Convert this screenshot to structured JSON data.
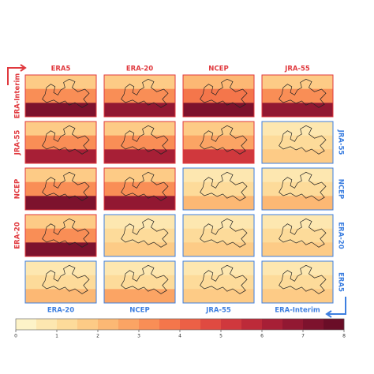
{
  "chart_data": {
    "type": "map-grid",
    "top_labels": [
      "ERA5",
      "ERA-20",
      "NCEP",
      "JRA-55"
    ],
    "left_labels": [
      "ERA-Interim",
      "JRA-55",
      "NCEP",
      "ERA-20"
    ],
    "right_labels": [
      "JRA-55",
      "NCEP",
      "ERA-20",
      "ERA5"
    ],
    "bottom_labels": [
      "ERA-20",
      "NCEP",
      "JRA-55",
      "ERA-Interim"
    ],
    "upper_color": "#e0393e",
    "lower_color": "#3d7fe0",
    "panels": [
      [
        {
          "values": [
            1.5,
            3,
            7
          ],
          "color": "#e0393e"
        },
        {
          "values": [
            1.5,
            3,
            6.5
          ],
          "color": "#e0393e"
        },
        {
          "values": [
            2,
            3.5,
            7
          ],
          "color": "#e0393e"
        },
        {
          "values": [
            1.5,
            3,
            6.5
          ],
          "color": "#e0393e"
        }
      ],
      [
        {
          "values": [
            1.5,
            3,
            6
          ],
          "color": "#e0393e"
        },
        {
          "values": [
            1.5,
            3,
            6
          ],
          "color": "#e0393e"
        },
        {
          "values": [
            1.5,
            2.5,
            5
          ],
          "color": "#e0393e"
        },
        {
          "values": [
            0.5,
            1,
            1.5
          ],
          "color": "#3d7fe0"
        }
      ],
      [
        {
          "values": [
            1.5,
            3,
            7
          ],
          "color": "#e0393e"
        },
        {
          "values": [
            1.5,
            3,
            6.5
          ],
          "color": "#e0393e"
        },
        {
          "values": [
            0.5,
            1,
            2
          ],
          "color": "#3d7fe0"
        },
        {
          "values": [
            0.5,
            1,
            2
          ],
          "color": "#3d7fe0"
        }
      ],
      [
        {
          "values": [
            1.5,
            3,
            7
          ],
          "color": "#e0393e"
        },
        {
          "values": [
            0.5,
            1,
            1.5
          ],
          "color": "#3d7fe0"
        },
        {
          "values": [
            0.5,
            1,
            1.5
          ],
          "color": "#3d7fe0"
        },
        {
          "values": [
            0.5,
            1,
            1.5
          ],
          "color": "#3d7fe0"
        }
      ],
      [
        {
          "values": [
            0.5,
            1,
            2
          ],
          "color": "#3d7fe0"
        },
        {
          "values": [
            0.5,
            1,
            2.5
          ],
          "color": "#3d7fe0"
        },
        {
          "values": [
            0.5,
            1,
            1.5
          ],
          "color": "#3d7fe0"
        },
        {
          "values": [
            0.5,
            1,
            1.5
          ],
          "color": "#3d7fe0"
        }
      ]
    ],
    "colorbar": {
      "lim": [
        0,
        8
      ],
      "ticks": [
        0,
        1,
        2,
        3,
        4,
        5,
        6,
        7,
        8
      ],
      "colors": [
        "#fdf3c8",
        "#fde7b0",
        "#fddb9a",
        "#fdcb86",
        "#fcb874",
        "#fba464",
        "#f98e56",
        "#f4764b",
        "#ec6046",
        "#e04a41",
        "#d0383d",
        "#bd2a39",
        "#a71f36",
        "#921832",
        "#7d122d",
        "#6a0d27"
      ]
    }
  }
}
